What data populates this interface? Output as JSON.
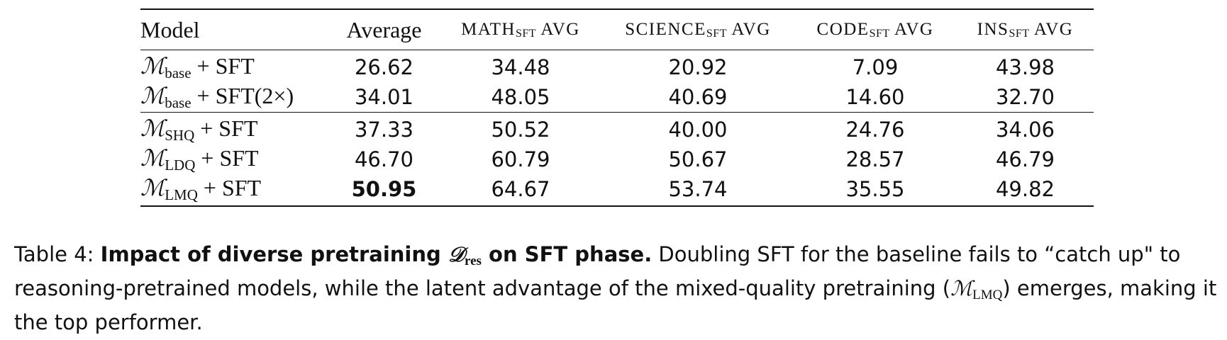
{
  "table": {
    "headers": {
      "model": "Model",
      "average": "Average",
      "math": {
        "main": "math",
        "sub": "SFT",
        "suffix": "avg"
      },
      "science": {
        "main": "science",
        "sub": "SFT",
        "suffix": "avg"
      },
      "code": {
        "main": "code",
        "sub": "SFT",
        "suffix": "avg"
      },
      "ins": {
        "main": "ins",
        "sub": "SFT",
        "suffix": "avg"
      }
    },
    "rows": [
      {
        "symbol": "ℳ",
        "sub": "base",
        "suffix": " + SFT",
        "average": "26.62",
        "math": "34.48",
        "science": "20.92",
        "code": "7.09",
        "ins": "43.98"
      },
      {
        "symbol": "ℳ",
        "sub": "base",
        "suffix": " + SFT(2×)",
        "average": "34.01",
        "math": "48.05",
        "science": "40.69",
        "code": "14.60",
        "ins": "32.70"
      },
      {
        "symbol": "ℳ",
        "sub": "SHQ",
        "suffix": " + SFT",
        "average": "37.33",
        "math": "50.52",
        "science": "40.00",
        "code": "24.76",
        "ins": "34.06"
      },
      {
        "symbol": "ℳ",
        "sub": "LDQ",
        "suffix": " + SFT",
        "average": "46.70",
        "math": "60.79",
        "science": "50.67",
        "code": "28.57",
        "ins": "46.79"
      },
      {
        "symbol": "ℳ",
        "sub": "LMQ",
        "suffix": " + SFT",
        "average": "50.95",
        "math": "64.67",
        "science": "53.74",
        "code": "35.55",
        "ins": "49.82"
      }
    ]
  },
  "caption": {
    "label": "Table 4: ",
    "bold_text": "Impact of diverse pretraining ",
    "bold_symbol": "𝒟",
    "bold_symbol_sub": "res",
    "bold_tail": " on SFT phase.",
    "text_part1": " Doubling SFT for the baseline fails to “catch up\" to reasoning-pretrained models, while the latent advantage of the mixed-quality pretraining (",
    "inline_symbol": "ℳ",
    "inline_sub": "LMQ",
    "text_part2": ") emerges, making it the top performer."
  }
}
